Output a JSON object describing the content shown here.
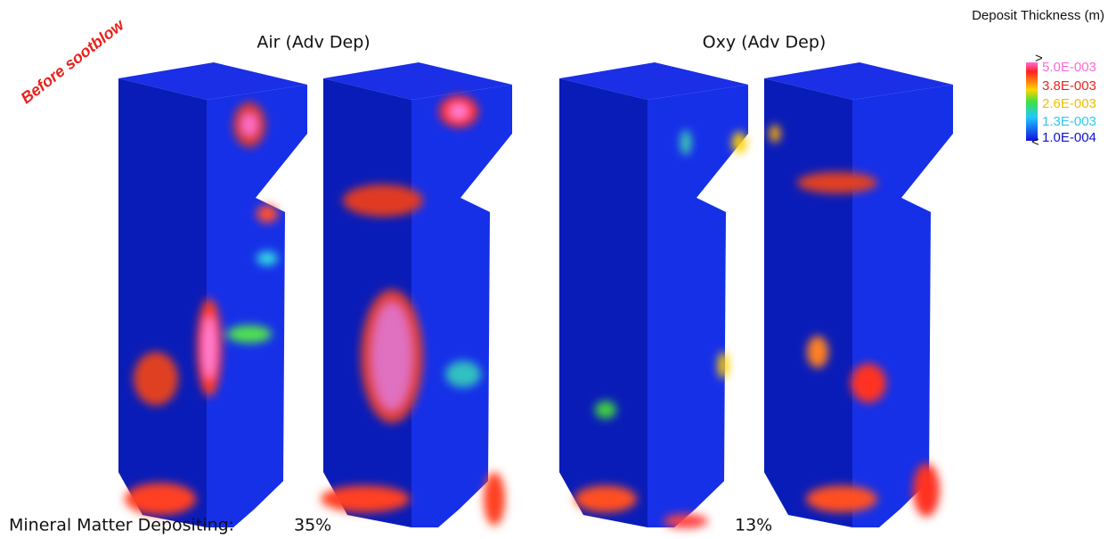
{
  "annotation": "Before sootblow",
  "panels": [
    {
      "title": "Air (Adv Dep)",
      "mineral_matter": "35%"
    },
    {
      "title": "Oxy (Adv Dep)",
      "mineral_matter": "13%"
    }
  ],
  "footer_label": "Mineral Matter Depositing:",
  "legend": {
    "title": "Deposit Thickness (m)",
    "max_marker": ">",
    "min_marker": "<",
    "labels": [
      "5.0E-003",
      "3.8E-003",
      "2.6E-003",
      "1.3E-003",
      "1.0E-004"
    ]
  }
}
